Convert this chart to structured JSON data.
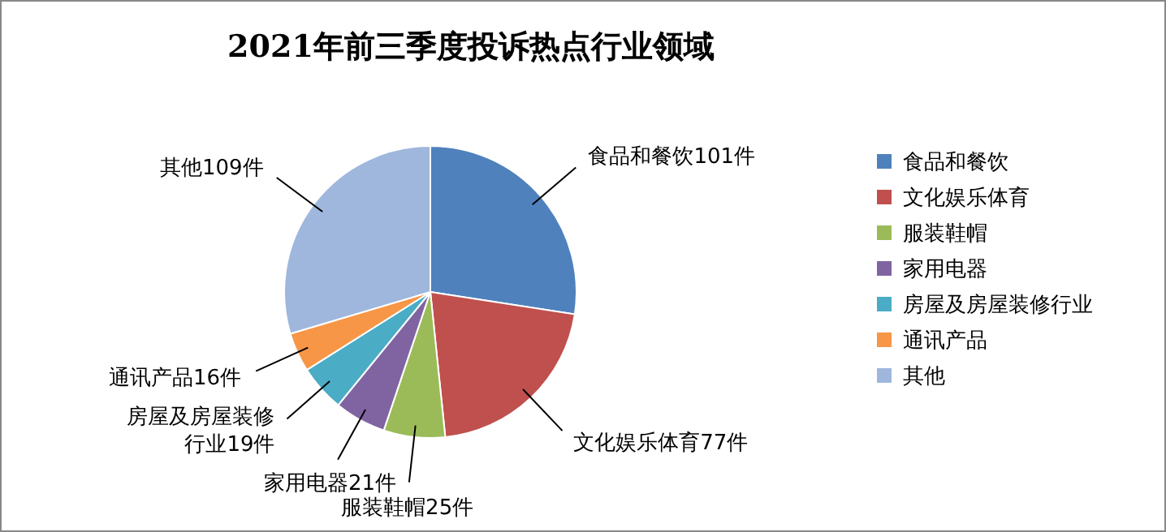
{
  "chart_data": {
    "type": "pie",
    "title": "2021年前三季度投诉热点行业领域",
    "categories": [
      "食品和餐饮",
      "文化娱乐体育",
      "服装鞋帽",
      "家用电器",
      "房屋及房屋装修行业",
      "通讯产品",
      "其他"
    ],
    "values": [
      101,
      77,
      25,
      21,
      19,
      16,
      109
    ],
    "colors": [
      "#4f81bd",
      "#c0504d",
      "#9bbb59",
      "#8064a2",
      "#4bacc6",
      "#f79646",
      "#9fb7dd"
    ],
    "value_labels": [
      "食品和餐饮101件",
      "文化娱乐体育77件",
      "服装鞋帽25件",
      "家用电器21件",
      "房屋及房屋装修行业19件",
      "通讯产品16件",
      "其他109件"
    ],
    "legend": "right"
  }
}
